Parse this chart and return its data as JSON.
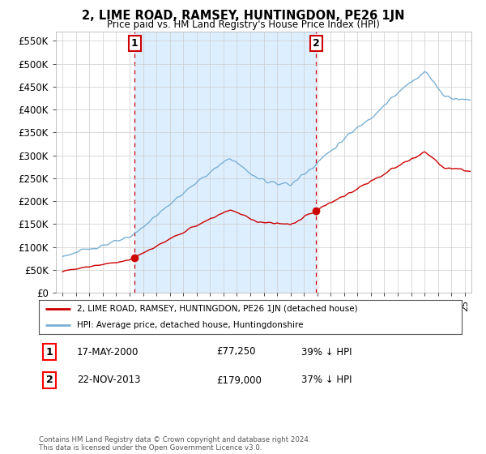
{
  "title": "2, LIME ROAD, RAMSEY, HUNTINGDON, PE26 1JN",
  "subtitle": "Price paid vs. HM Land Registry's House Price Index (HPI)",
  "ylabel_ticks": [
    "£0",
    "£50K",
    "£100K",
    "£150K",
    "£200K",
    "£250K",
    "£300K",
    "£350K",
    "£400K",
    "£450K",
    "£500K",
    "£550K"
  ],
  "ytick_values": [
    0,
    50000,
    100000,
    150000,
    200000,
    250000,
    300000,
    350000,
    400000,
    450000,
    500000,
    550000
  ],
  "xmin": 1994.5,
  "xmax": 2025.5,
  "ymin": 0,
  "ymax": 570000,
  "transaction1_date": 2000.375,
  "transaction1_price": 77250,
  "transaction2_date": 2013.9,
  "transaction2_price": 179000,
  "legend_house_label": "2, LIME ROAD, RAMSEY, HUNTINGDON, PE26 1JN (detached house)",
  "legend_hpi_label": "HPI: Average price, detached house, Huntingdonshire",
  "sale1_label": "17-MAY-2000",
  "sale1_price_text": "£77,250",
  "sale1_hpi_text": "39% ↓ HPI",
  "sale2_label": "22-NOV-2013",
  "sale2_price_text": "£179,000",
  "sale2_hpi_text": "37% ↓ HPI",
  "footer": "Contains HM Land Registry data © Crown copyright and database right 2024.\nThis data is licensed under the Open Government Licence v3.0.",
  "house_color": "#cc0000",
  "hpi_color": "#7ab0d4",
  "shade_color": "#ddeeff",
  "background_color": "#ffffff",
  "grid_color": "#cccccc"
}
